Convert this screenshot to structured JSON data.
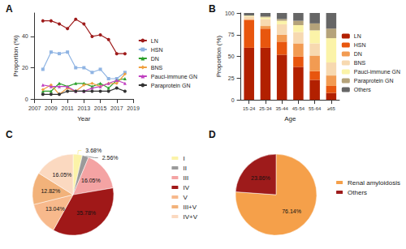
{
  "chart_data": [
    {
      "type": "line",
      "title": "A",
      "xlabel": "Year",
      "ylabel": "Proportion (%)",
      "x": [
        2008,
        2009,
        2010,
        2011,
        2012,
        2013,
        2014,
        2015,
        2016,
        2017,
        2018
      ],
      "xlim": [
        2007,
        2019
      ],
      "xticks": [
        2007,
        2009,
        2011,
        2013,
        2015,
        2017,
        2019
      ],
      "ylim": [
        0,
        55
      ],
      "yticks": [
        0,
        20,
        40
      ],
      "grid": false,
      "legend": "right",
      "series": [
        {
          "name": "LN",
          "color": "#9e1b1b",
          "marker": "circle",
          "values": [
            50,
            50,
            48,
            45,
            51,
            48,
            40,
            41,
            38,
            29,
            29
          ]
        },
        {
          "name": "HSN",
          "color": "#8fb4e3",
          "marker": "square",
          "values": [
            19,
            30,
            29,
            30,
            20,
            20,
            17,
            19,
            13,
            13,
            17
          ]
        },
        {
          "name": "DN",
          "color": "#2ca02c",
          "marker": "triangle",
          "values": [
            5,
            5,
            10,
            8,
            10,
            10,
            8,
            10,
            7,
            12,
            13
          ]
        },
        {
          "name": "BNS",
          "color": "#f0a040",
          "marker": "diamond",
          "values": [
            6,
            9,
            3,
            7,
            5,
            9,
            10,
            8,
            10,
            10,
            16
          ]
        },
        {
          "name": "Pauci-immune GN",
          "color": "#c040c0",
          "marker": "triangle",
          "values": [
            9,
            8,
            8,
            8,
            5,
            5,
            7,
            8,
            10,
            12,
            10
          ]
        },
        {
          "name": "Paraprotein GN",
          "color": "#333333",
          "marker": "circle",
          "values": [
            3,
            3,
            3,
            5,
            5,
            5,
            5,
            5,
            5,
            7,
            5
          ]
        }
      ]
    },
    {
      "type": "bar",
      "title": "B",
      "xlabel": "Age",
      "ylabel": "Proportion (%)",
      "stacked": true,
      "categories": [
        "15-24",
        "25-34",
        "35-44",
        "45-54",
        "55-64",
        "≥65"
      ],
      "ylim": [
        0,
        100
      ],
      "yticks": [
        0,
        25,
        50,
        75,
        100
      ],
      "grid": false,
      "legend": "right",
      "series": [
        {
          "name": "LN",
          "color": "#b22000",
          "values": [
            60,
            60,
            52,
            38,
            23,
            8
          ]
        },
        {
          "name": "HSN",
          "color": "#e8560e",
          "values": [
            32,
            22,
            15,
            12,
            10,
            8
          ]
        },
        {
          "name": "DN",
          "color": "#f29b52",
          "values": [
            1,
            3,
            8,
            15,
            18,
            12
          ]
        },
        {
          "name": "BNS",
          "color": "#f7d9b0",
          "values": [
            3,
            8,
            12,
            13,
            14,
            15
          ]
        },
        {
          "name": "Pauci-immune GN",
          "color": "#fbf3a8",
          "values": [
            1,
            2,
            4,
            8,
            15,
            28
          ]
        },
        {
          "name": "Paraprotein GN",
          "color": "#b5a37a",
          "values": [
            0,
            1,
            2,
            5,
            8,
            11
          ]
        },
        {
          "name": "Others",
          "color": "#666666",
          "values": [
            3,
            4,
            7,
            9,
            12,
            18
          ]
        }
      ]
    },
    {
      "type": "pie",
      "title": "C",
      "legend": "right",
      "data_labels": true,
      "categories": [
        "I",
        "II",
        "III",
        "IV",
        "V",
        "III+V",
        "IV+V"
      ],
      "values": [
        3.68,
        2.56,
        16.05,
        35.78,
        13.04,
        12.82,
        16.05
      ],
      "value_labels": [
        "3.68%",
        "2.56%",
        "16.05%",
        "35.78%",
        "13.04%",
        "12.82%",
        "16.05%"
      ],
      "colors": [
        "#fbf3a8",
        "#9a9a9a",
        "#f4a3a3",
        "#a01818",
        "#f7b98c",
        "#f2b27a",
        "#fbd9c0"
      ]
    },
    {
      "type": "pie",
      "title": "D",
      "legend": "right",
      "data_labels": true,
      "categories": [
        "Renal amyloidosis",
        "Others"
      ],
      "values": [
        76.14,
        23.86
      ],
      "value_labels": [
        "76.14%",
        "23.86%"
      ],
      "colors": [
        "#f5a04a",
        "#9e1b1b"
      ]
    }
  ]
}
